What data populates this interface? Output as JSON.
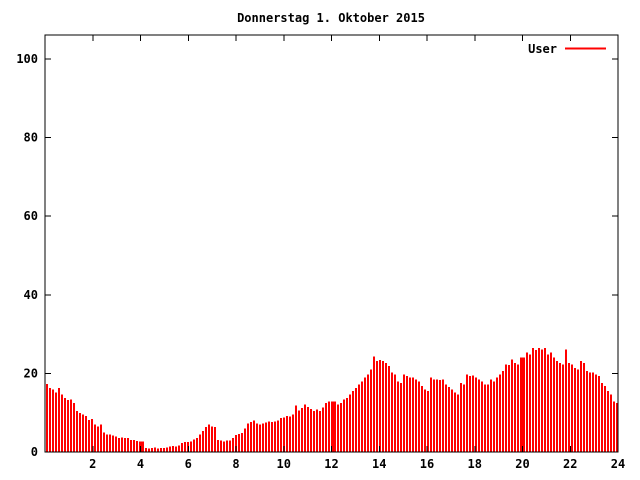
{
  "chart_data": {
    "type": "bar",
    "title": "Donnerstag 1. Oktober 2015",
    "legend": [
      {
        "label": "User",
        "color": "#ff0000"
      }
    ],
    "legend_position": "top-right-inside",
    "xlabel": "",
    "ylabel": "",
    "x_unit": "hour-of-day",
    "xlim": [
      0,
      24
    ],
    "ylim": [
      0,
      106
    ],
    "x_ticks": [
      2,
      4,
      6,
      8,
      10,
      12,
      14,
      16,
      18,
      20,
      22,
      24
    ],
    "y_ticks": [
      0,
      20,
      40,
      60,
      80,
      100
    ],
    "grid": false,
    "bar_color": "#ff0000",
    "axis_color": "#000000",
    "background_color": "#ffffff",
    "values": [
      17.3,
      16.3,
      15.9,
      15.2,
      16.3,
      14.6,
      13.8,
      13.2,
      13.4,
      12.5,
      10.4,
      9.9,
      9.5,
      9.1,
      8.2,
      8.4,
      7.0,
      6.5,
      7.0,
      5.0,
      4.4,
      4.4,
      4.2,
      4.0,
      3.6,
      3.7,
      3.5,
      3.6,
      3.1,
      3.0,
      2.8,
      2.7,
      2.7,
      1.0,
      0.9,
      1.0,
      1.1,
      0.9,
      1.0,
      1.0,
      1.1,
      1.4,
      1.5,
      1.4,
      1.6,
      2.3,
      2.5,
      2.6,
      2.7,
      3.2,
      3.6,
      4.4,
      5.3,
      6.3,
      7.0,
      6.5,
      6.3,
      3.1,
      2.9,
      2.7,
      2.9,
      2.9,
      3.6,
      4.3,
      4.6,
      4.8,
      6.0,
      7.2,
      7.6,
      8.0,
      7.2,
      7.0,
      7.2,
      7.5,
      7.8,
      7.6,
      7.8,
      8.0,
      8.7,
      8.8,
      9.1,
      9.0,
      9.5,
      11.8,
      10.5,
      11.2,
      12.1,
      11.5,
      11.0,
      10.4,
      10.8,
      10.4,
      11.3,
      12.5,
      12.9,
      12.9,
      12.9,
      12.1,
      12.5,
      13.3,
      13.8,
      14.6,
      15.5,
      16.3,
      17.2,
      18.0,
      18.9,
      19.7,
      21.0,
      24.3,
      23.1,
      23.4,
      23.1,
      22.7,
      21.9,
      20.2,
      19.7,
      18.0,
      17.6,
      19.7,
      19.3,
      18.9,
      18.9,
      18.5,
      18.0,
      16.8,
      15.9,
      15.5,
      18.9,
      18.5,
      18.5,
      18.3,
      18.5,
      17.2,
      16.5,
      15.9,
      15.1,
      14.6,
      17.6,
      17.2,
      19.7,
      19.3,
      19.5,
      18.9,
      18.5,
      18.0,
      17.2,
      17.2,
      18.5,
      18.0,
      18.9,
      19.7,
      20.6,
      22.3,
      22.1,
      23.6,
      22.7,
      22.3,
      24.1,
      24.1,
      25.3,
      24.8,
      26.4,
      25.9,
      26.5,
      26.1,
      26.4,
      24.8,
      25.3,
      24.0,
      23.1,
      22.7,
      22.3,
      26.1,
      22.7,
      22.3,
      21.4,
      21.0,
      23.1,
      22.7,
      20.6,
      20.2,
      20.2,
      19.7,
      19.3,
      17.6,
      16.8,
      15.5,
      14.6,
      12.9,
      12.5
    ],
    "solid_indices": [
      31,
      95,
      158
    ]
  }
}
